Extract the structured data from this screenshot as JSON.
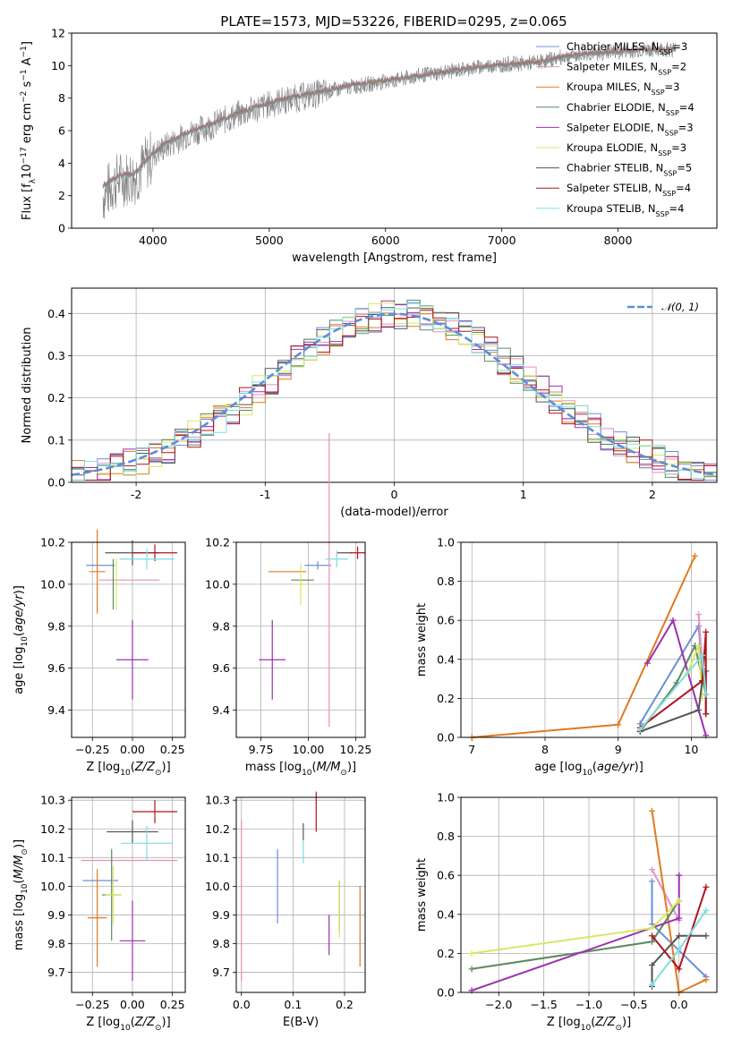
{
  "figure_title": "PLATE=1573, MJD=53226, FIBERID=0295, z=0.065",
  "models": [
    {
      "name": "Chabrier MILES",
      "nssp": "3",
      "color": "#6b8fd8"
    },
    {
      "name": "Salpeter MILES",
      "nssp": "2",
      "color": "#e88fc0"
    },
    {
      "name": "Kroupa MILES",
      "nssp": "3",
      "color": "#e07a20"
    },
    {
      "name": "Chabrier ELODIE",
      "nssp": "4",
      "color": "#5a8a5e"
    },
    {
      "name": "Salpeter ELODIE",
      "nssp": "3",
      "color": "#9b30b0"
    },
    {
      "name": "Kroupa ELODIE",
      "nssp": "3",
      "color": "#d8e860"
    },
    {
      "name": "Chabrier STELIB",
      "nssp": "5",
      "color": "#555555"
    },
    {
      "name": "Salpeter STELIB",
      "nssp": "4",
      "color": "#b0141c"
    },
    {
      "name": "Kroupa STELIB",
      "nssp": "4",
      "color": "#7fdde0"
    }
  ],
  "chart_data": [
    {
      "id": "spectrum",
      "type": "line",
      "xlabel": "wavelength [Angstrom, rest frame]",
      "ylabel": "Flux [f_λ10^-17 erg cm^-2 s^-1 A^-1]",
      "xlim": [
        3300,
        8850
      ],
      "ylim": [
        0,
        12
      ],
      "xticks": [
        4000,
        5000,
        6000,
        7000,
        8000
      ],
      "yticks": [
        0,
        2,
        4,
        6,
        8,
        10,
        12
      ],
      "data_color": "#808080",
      "data_x": [
        3570,
        3700,
        3850,
        4000,
        4100,
        4300,
        4500,
        4700,
        4900,
        5100,
        5300,
        5500,
        5700,
        5900,
        6100,
        6300,
        6500,
        6700,
        6900,
        7100,
        7300,
        7500,
        7700,
        7900,
        8100,
        8300,
        8500
      ],
      "data_y": [
        2.0,
        3.0,
        3.2,
        4.5,
        5.0,
        5.8,
        6.3,
        6.9,
        7.4,
        7.8,
        8.1,
        8.4,
        8.7,
        8.9,
        9.1,
        9.4,
        9.6,
        9.8,
        10.0,
        10.1,
        10.2,
        10.5,
        10.7,
        10.8,
        10.9,
        11.0,
        11.0
      ],
      "model_y": [
        2.6,
        3.2,
        3.4,
        4.6,
        5.2,
        5.9,
        6.4,
        7.0,
        7.5,
        7.9,
        8.2,
        8.5,
        8.8,
        9.0,
        9.2,
        9.4,
        9.6,
        9.8,
        10.0,
        10.1,
        10.2,
        10.5,
        10.7,
        10.8,
        10.9,
        11.0,
        11.0
      ],
      "grid": false,
      "legend": "upper right"
    },
    {
      "id": "residuals",
      "type": "histogram",
      "xlabel": "(data-model)/error",
      "ylabel": "Normed distribution",
      "xlim": [
        -2.5,
        2.5
      ],
      "ylim": [
        0,
        0.46
      ],
      "xticks": [
        -2,
        -1,
        0,
        1,
        2
      ],
      "yticks": [
        0.0,
        0.1,
        0.2,
        0.3,
        0.4
      ],
      "gaussian_label": "𝒩(0, 1)",
      "gaussian_color": "#5b8fd8",
      "grid": true,
      "legend": "upper right"
    },
    {
      "id": "age_vs_Z",
      "type": "errorbar",
      "xlabel": "Z [log10(Z/Z⊙)]",
      "ylabel": "age  [log10(age/yr)]",
      "xlim": [
        -0.38,
        0.33
      ],
      "ylim": [
        9.27,
        10.2
      ],
      "xticks": [
        -0.25,
        0.0,
        0.25
      ],
      "xtick_labels": [
        "−0.25",
        "0.00",
        "0.25"
      ],
      "yticks": [
        9.4,
        9.6,
        9.8,
        10.0,
        10.2
      ],
      "points": [
        {
          "x": -0.2,
          "xerr": 0.09,
          "y": 10.09,
          "yerr": 0.0
        },
        {
          "x": -0.02,
          "xerr": 0.19,
          "y": 10.02,
          "yerr": 0.0
        },
        {
          "x": -0.22,
          "xerr": 0.05,
          "y": 10.06,
          "yerr": 0.2
        },
        {
          "x": -0.12,
          "xerr": 0.0,
          "y": 10.0,
          "yerr": 0.12
        },
        {
          "x": 0.0,
          "xerr": 0.1,
          "y": 9.64,
          "yerr": 0.19
        },
        {
          "x": -0.1,
          "xerr": 0.0,
          "y": 10.0,
          "yerr": 0.12
        },
        {
          "x": 0.0,
          "xerr": 0.17,
          "y": 10.15,
          "yerr": 0.06
        },
        {
          "x": 0.14,
          "xerr": 0.14,
          "y": 10.15,
          "yerr": 0.04
        },
        {
          "x": 0.09,
          "xerr": 0.17,
          "y": 10.12,
          "yerr": 0.05
        }
      ]
    },
    {
      "id": "age_vs_mass",
      "type": "errorbar",
      "xlabel": "mass [log10(M/M⊙)]",
      "ylabel": "",
      "xlim": [
        9.62,
        10.3
      ],
      "ylim": [
        9.27,
        10.2
      ],
      "xticks": [
        9.75,
        10.0,
        10.25
      ],
      "yticks": [
        9.4,
        9.6,
        9.8,
        10.0,
        10.2
      ],
      "points": [
        {
          "x": 10.05,
          "xerr": 0.07,
          "y": 10.09,
          "yerr": 0.02
        },
        {
          "x": 10.11,
          "xerr": 0.0,
          "y": 10.02,
          "yerr": 0.7
        },
        {
          "x": 9.89,
          "xerr": 0.1,
          "y": 10.06,
          "yerr": 0.0
        },
        {
          "x": 9.97,
          "xerr": 0.06,
          "y": 10.02,
          "yerr": 0.0
        },
        {
          "x": 9.81,
          "xerr": 0.07,
          "y": 9.64,
          "yerr": 0.19
        },
        {
          "x": 9.96,
          "xerr": 0.03,
          "y": 10.0,
          "yerr": 0.1
        },
        {
          "x": 10.19,
          "xerr": 0.04,
          "y": 10.15,
          "yerr": 0.0
        },
        {
          "x": 10.26,
          "xerr": 0.04,
          "y": 10.15,
          "yerr": 0.03
        },
        {
          "x": 10.15,
          "xerr": 0.06,
          "y": 10.12,
          "yerr": 0.04
        }
      ]
    },
    {
      "id": "massweight_vs_age",
      "type": "line",
      "xlabel": "age  [log10(age/yr)]",
      "ylabel": "mass weight",
      "xlim": [
        6.85,
        10.35
      ],
      "ylim": [
        0,
        1.0
      ],
      "xticks": [
        7,
        8,
        9,
        10
      ],
      "yticks": [
        0.0,
        0.2,
        0.4,
        0.6,
        0.8,
        1.0
      ],
      "series": [
        {
          "model": 0,
          "x": [
            9.3,
            10.1,
            10.15
          ],
          "y": [
            0.07,
            0.57,
            0.35
          ]
        },
        {
          "model": 1,
          "x": [
            10.1,
            10.15
          ],
          "y": [
            0.63,
            0.37
          ]
        },
        {
          "model": 2,
          "x": [
            7.0,
            9.0,
            10.05
          ],
          "y": [
            0.0,
            0.065,
            0.93
          ]
        },
        {
          "model": 3,
          "x": [
            9.3,
            9.8,
            10.05,
            10.2
          ],
          "y": [
            0.03,
            0.28,
            0.47,
            0.22
          ]
        },
        {
          "model": 4,
          "x": [
            9.4,
            9.75,
            10.2
          ],
          "y": [
            0.38,
            0.6,
            0.01
          ]
        },
        {
          "model": 5,
          "x": [
            9.95,
            10.1,
            10.15
          ],
          "y": [
            0.33,
            0.47,
            0.2
          ]
        },
        {
          "model": 6,
          "x": [
            9.3,
            10.1,
            10.15,
            10.2,
            10.2
          ],
          "y": [
            0.03,
            0.14,
            0.29,
            0.34,
            0.12
          ]
        },
        {
          "model": 7,
          "x": [
            9.3,
            10.15,
            10.2,
            10.2
          ],
          "y": [
            0.05,
            0.29,
            0.54,
            0.12
          ]
        },
        {
          "model": 8,
          "x": [
            9.3,
            10.15,
            10.2
          ],
          "y": [
            0.04,
            0.42,
            0.22
          ]
        }
      ]
    },
    {
      "id": "mass_vs_Z",
      "type": "errorbar",
      "xlabel": "Z [log10(Z/Z⊙)]",
      "ylabel": "mass [log10(M/M⊙)]",
      "xlim": [
        -0.38,
        0.33
      ],
      "ylim": [
        9.63,
        10.31
      ],
      "xticks": [
        -0.25,
        0.0,
        0.25
      ],
      "xtick_labels": [
        "−0.25",
        "0.00",
        "0.25"
      ],
      "yticks": [
        9.7,
        9.8,
        9.9,
        10.0,
        10.1,
        10.2,
        10.3
      ],
      "points": [
        {
          "x": -0.2,
          "xerr": 0.11,
          "y": 10.02,
          "yerr": 0.0
        },
        {
          "x": -0.02,
          "xerr": 0.3,
          "y": 10.09,
          "yerr": 0.0
        },
        {
          "x": -0.22,
          "xerr": 0.06,
          "y": 9.89,
          "yerr": 0.17
        },
        {
          "x": -0.13,
          "xerr": 0.06,
          "y": 9.97,
          "yerr": 0.16
        },
        {
          "x": 0.0,
          "xerr": 0.08,
          "y": 9.81,
          "yerr": 0.14
        },
        {
          "x": -0.12,
          "xerr": 0.05,
          "y": 9.97,
          "yerr": 0.1
        },
        {
          "x": 0.0,
          "xerr": 0.16,
          "y": 10.19,
          "yerr": 0.04
        },
        {
          "x": 0.14,
          "xerr": 0.14,
          "y": 10.26,
          "yerr": 0.04
        },
        {
          "x": 0.09,
          "xerr": 0.16,
          "y": 10.15,
          "yerr": 0.06
        }
      ]
    },
    {
      "id": "mass_vs_EBV",
      "type": "errorbar",
      "xlabel": "E(B-V)",
      "ylabel": "",
      "xlim": [
        -0.01,
        0.24
      ],
      "ylim": [
        9.63,
        10.31
      ],
      "xticks": [
        0.0,
        0.1,
        0.2
      ],
      "yticks": [
        9.7,
        9.8,
        9.9,
        10.0,
        10.1,
        10.2,
        10.3
      ],
      "points": [
        {
          "x": 0.07,
          "xerr": 0.0,
          "y": 10.0,
          "yerr": 0.13
        },
        {
          "x": 0.0,
          "xerr": 0.0,
          "y": 9.95,
          "yerr": 0.28
        },
        {
          "x": 0.23,
          "xerr": 0.0,
          "y": 9.86,
          "yerr": 0.14
        },
        {
          "x": 0.19,
          "xerr": 0.0,
          "y": 9.93,
          "yerr": 0.09
        },
        {
          "x": 0.17,
          "xerr": 0.0,
          "y": 9.83,
          "yerr": 0.07
        },
        {
          "x": 0.19,
          "xerr": 0.0,
          "y": 9.92,
          "yerr": 0.1
        },
        {
          "x": 0.12,
          "xerr": 0.0,
          "y": 10.19,
          "yerr": 0.03
        },
        {
          "x": 0.145,
          "xerr": 0.0,
          "y": 10.26,
          "yerr": 0.07
        },
        {
          "x": 0.12,
          "xerr": 0.0,
          "y": 10.12,
          "yerr": 0.04
        }
      ]
    },
    {
      "id": "massweight_vs_Z",
      "type": "line",
      "xlabel": "Z [log10(Z/Z⊙)]",
      "ylabel": "mass weight",
      "xlim": [
        -2.42,
        0.42
      ],
      "ylim": [
        0,
        1.0
      ],
      "xticks": [
        -2.0,
        -1.5,
        -1.0,
        -0.5,
        0.0
      ],
      "xtick_labels": [
        "−2.0",
        "−1.5",
        "−1.0",
        "−0.5",
        "0.0"
      ],
      "yticks": [
        0.0,
        0.2,
        0.4,
        0.6,
        0.8,
        1.0
      ],
      "series": [
        {
          "model": 0,
          "x": [
            -0.3,
            -0.3,
            0.3
          ],
          "y": [
            0.57,
            0.35,
            0.08
          ]
        },
        {
          "model": 1,
          "x": [
            -0.3,
            0.0
          ],
          "y": [
            0.63,
            0.37
          ]
        },
        {
          "model": 2,
          "x": [
            -0.3,
            0.0,
            0.3
          ],
          "y": [
            0.93,
            0.0,
            0.065
          ]
        },
        {
          "model": 3,
          "x": [
            -2.3,
            -0.3,
            0.0
          ],
          "y": [
            0.12,
            0.26,
            0.47
          ]
        },
        {
          "model": 4,
          "x": [
            -2.3,
            0.0,
            0.0
          ],
          "y": [
            0.01,
            0.38,
            0.6
          ]
        },
        {
          "model": 5,
          "x": [
            -2.3,
            -0.3,
            0.0
          ],
          "y": [
            0.2,
            0.33,
            0.47
          ]
        },
        {
          "model": 6,
          "x": [
            -0.3,
            -0.3,
            0.0,
            0.3
          ],
          "y": [
            0.03,
            0.14,
            0.29,
            0.29
          ]
        },
        {
          "model": 7,
          "x": [
            -0.3,
            0.0,
            0.3
          ],
          "y": [
            0.29,
            0.12,
            0.54
          ]
        },
        {
          "model": 8,
          "x": [
            -0.3,
            0.0,
            0.3
          ],
          "y": [
            0.04,
            0.22,
            0.42
          ]
        }
      ]
    }
  ]
}
